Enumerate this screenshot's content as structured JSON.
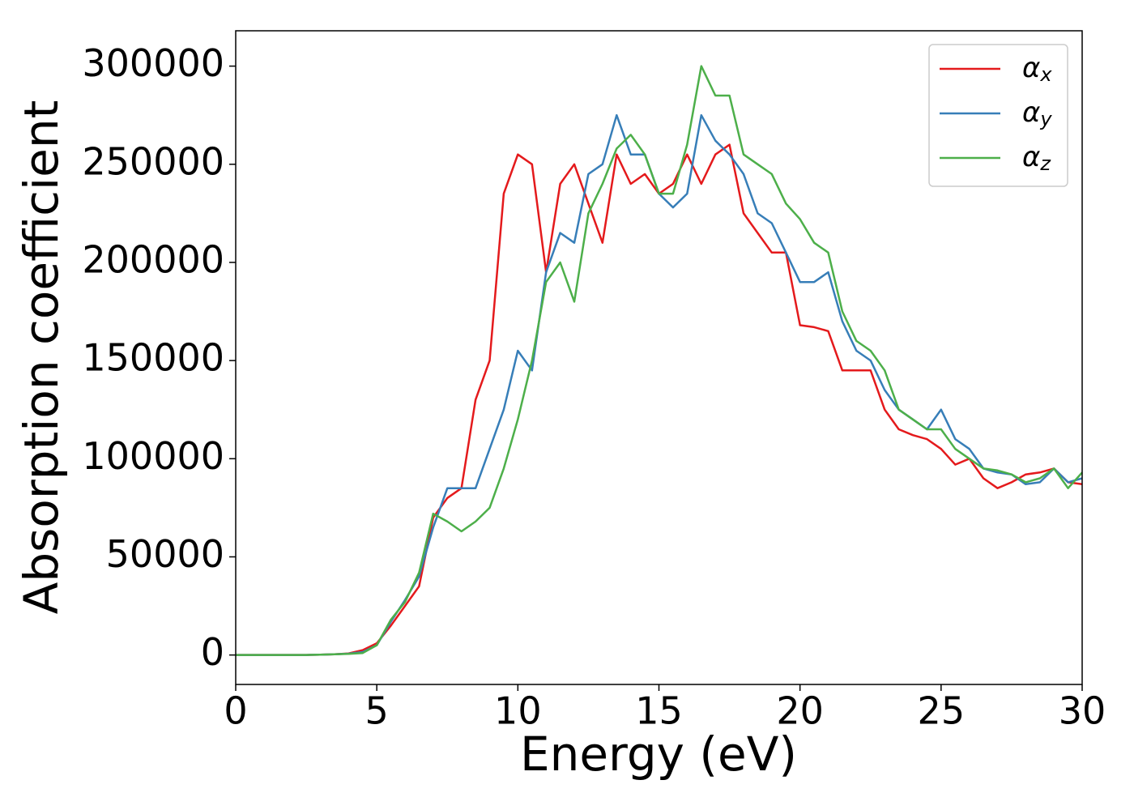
{
  "chart_data": {
    "type": "line",
    "xlabel": "Energy (eV)",
    "ylabel": "Absorption coefficient",
    "x": [
      0,
      0.5,
      1,
      1.5,
      2,
      2.5,
      3,
      3.5,
      4,
      4.5,
      5,
      5.5,
      6,
      6.5,
      7,
      7.5,
      8,
      8.5,
      9,
      9.5,
      10,
      10.5,
      11,
      11.5,
      12,
      12.5,
      13,
      13.5,
      14,
      14.5,
      15,
      15.5,
      16,
      16.5,
      17,
      17.5,
      18,
      18.5,
      19,
      19.5,
      20,
      20.5,
      21,
      21.5,
      22,
      22.5,
      23,
      23.5,
      24,
      24.5,
      25,
      25.5,
      26,
      26.5,
      27,
      27.5,
      28,
      28.5,
      29,
      29.5,
      30
    ],
    "series": [
      {
        "name": "αx",
        "color": "#e41a1c",
        "values": [
          0,
          0,
          0,
          0,
          0,
          0,
          200,
          400,
          800,
          2500,
          6000,
          15000,
          25000,
          35000,
          70000,
          80000,
          85000,
          130000,
          150000,
          235000,
          255000,
          250000,
          195000,
          240000,
          250000,
          230000,
          210000,
          255000,
          240000,
          245000,
          235000,
          240000,
          255000,
          240000,
          255000,
          260000,
          225000,
          215000,
          205000,
          205000,
          168000,
          167000,
          165000,
          145000,
          145000,
          145000,
          125000,
          115000,
          112000,
          110000,
          105000,
          97000,
          100000,
          90000,
          85000,
          88000,
          92000,
          93000,
          95000,
          88000,
          87000
        ]
      },
      {
        "name": "αy",
        "color": "#377eb8",
        "values": [
          0,
          0,
          0,
          0,
          0,
          0,
          200,
          400,
          700,
          1500,
          5000,
          17000,
          28000,
          40000,
          65000,
          85000,
          85000,
          85000,
          105000,
          125000,
          155000,
          145000,
          195000,
          215000,
          210000,
          245000,
          250000,
          275000,
          255000,
          255000,
          235000,
          228000,
          235000,
          275000,
          262000,
          255000,
          245000,
          225000,
          220000,
          205000,
          190000,
          190000,
          195000,
          170000,
          155000,
          150000,
          135000,
          125000,
          120000,
          115000,
          125000,
          110000,
          105000,
          95000,
          93000,
          92000,
          87000,
          88000,
          95000,
          88000,
          90000
        ]
      },
      {
        "name": "αz",
        "color": "#4daf4a",
        "values": [
          0,
          0,
          0,
          0,
          0,
          0,
          200,
          400,
          600,
          1000,
          5000,
          18000,
          27000,
          42000,
          72000,
          68000,
          63000,
          68000,
          75000,
          95000,
          120000,
          150000,
          190000,
          200000,
          180000,
          225000,
          240000,
          258000,
          265000,
          255000,
          235000,
          235000,
          260000,
          300000,
          285000,
          285000,
          255000,
          250000,
          245000,
          230000,
          222000,
          210000,
          205000,
          175000,
          160000,
          155000,
          145000,
          125000,
          120000,
          115000,
          115000,
          105000,
          100000,
          95000,
          94000,
          92000,
          88000,
          90000,
          95000,
          85000,
          93000
        ]
      }
    ],
    "xlim": [
      0,
      30
    ],
    "xticks": [
      0,
      5,
      10,
      15,
      20,
      25,
      30
    ],
    "ylim": [
      -15000,
      318000
    ],
    "yticks": [
      0,
      50000,
      100000,
      150000,
      200000,
      250000,
      300000
    ],
    "legend": "upper right"
  }
}
